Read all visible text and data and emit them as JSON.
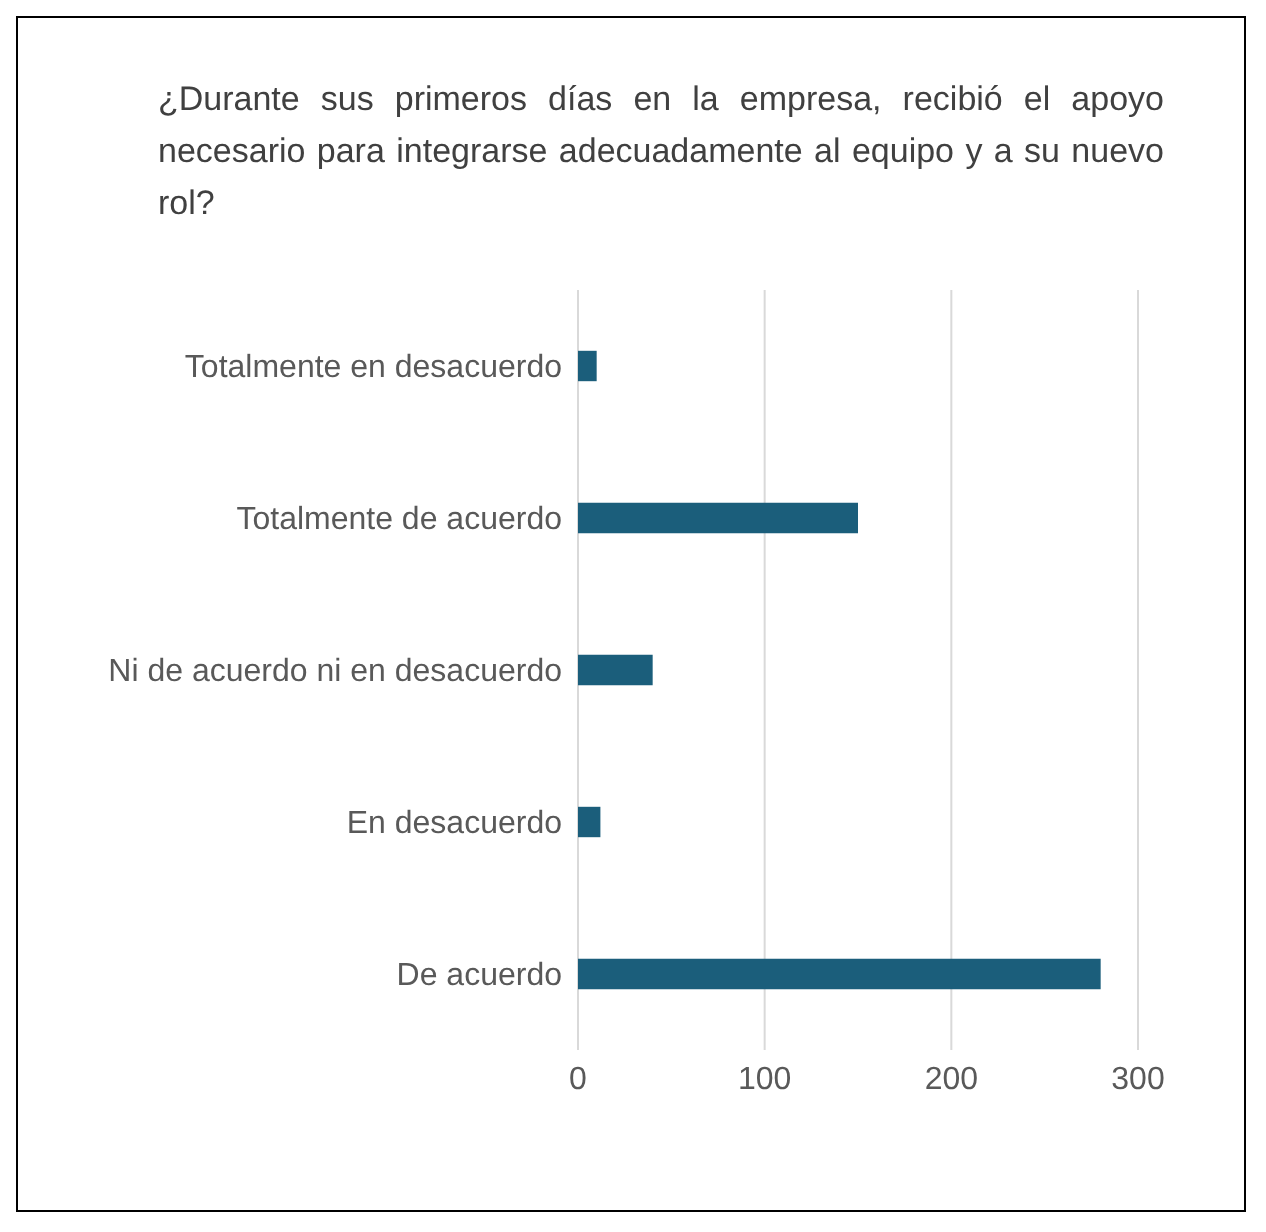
{
  "chart_data": {
    "type": "bar",
    "orientation": "horizontal",
    "title": "¿Durante sus primeros días en la empresa, recibió el apoyo necesario para integrarse adecuadamente al equipo y a su nuevo rol?",
    "categories": [
      "Totalmente en desacuerdo",
      "Totalmente de acuerdo",
      "Ni de acuerdo ni en desacuerdo",
      "En desacuerdo",
      "De acuerdo"
    ],
    "values": [
      10,
      150,
      40,
      12,
      280
    ],
    "color": "#1b5e7b",
    "xlim": [
      0,
      300
    ],
    "xticks": [
      0,
      100,
      200,
      300
    ],
    "grid": "x"
  }
}
